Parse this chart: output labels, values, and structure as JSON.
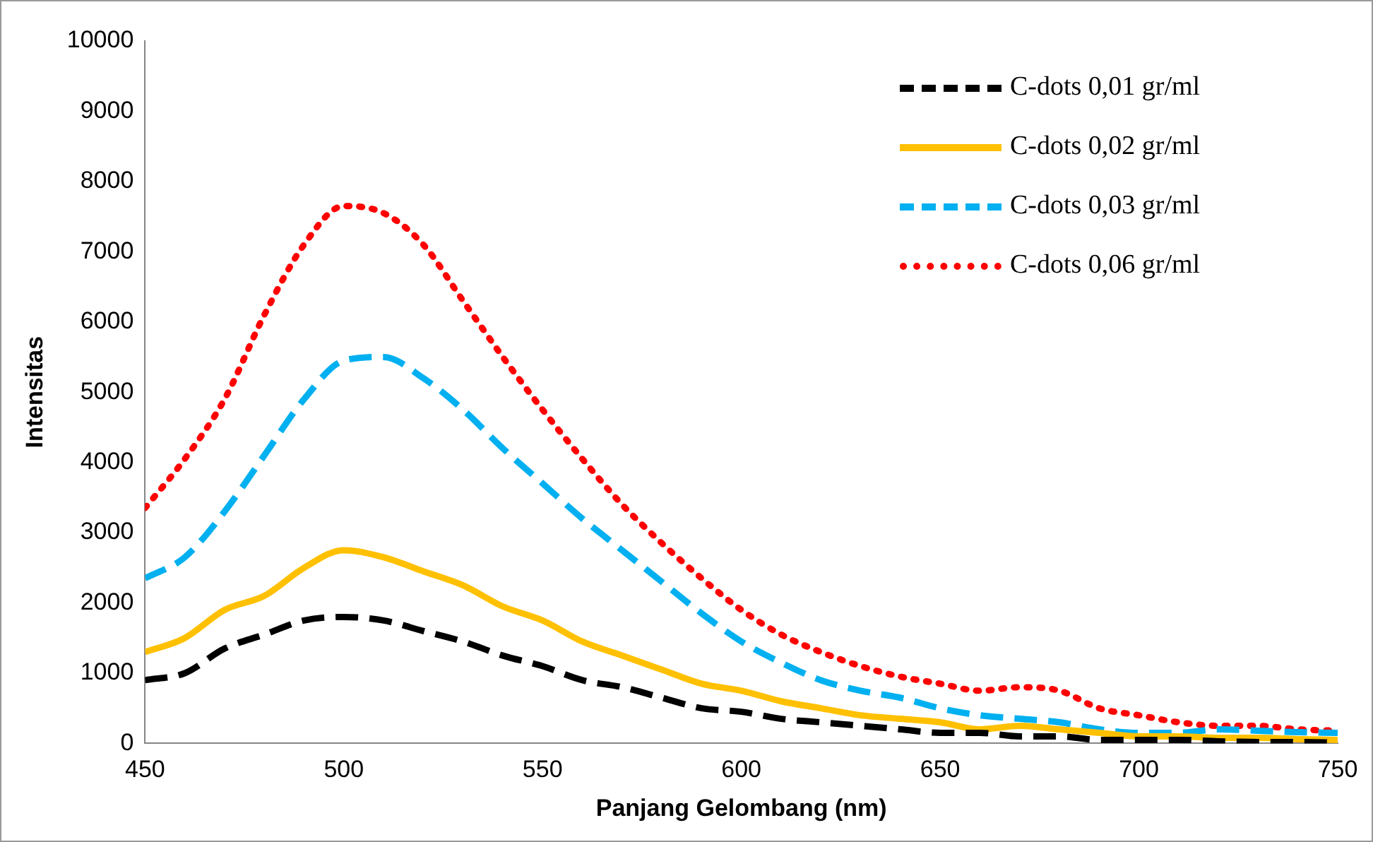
{
  "chart_data": {
    "type": "line",
    "xlabel": "Panjang Gelombang (nm)",
    "ylabel": "Intensitas",
    "x": [
      450,
      460,
      470,
      480,
      490,
      500,
      510,
      520,
      530,
      540,
      550,
      560,
      570,
      580,
      590,
      600,
      610,
      620,
      630,
      640,
      650,
      660,
      670,
      680,
      690,
      700,
      710,
      720,
      730,
      740,
      750
    ],
    "xlim": [
      450,
      750
    ],
    "xticks": [
      450,
      500,
      550,
      600,
      650,
      700,
      750
    ],
    "ylim": [
      0,
      10000
    ],
    "yticks": [
      0,
      1000,
      2000,
      3000,
      4000,
      5000,
      6000,
      7000,
      8000,
      9000,
      10000
    ],
    "grid": false,
    "legend": "top right",
    "marker": "none",
    "series": [
      {
        "name": "C-dots 0,01 gr/ml",
        "color": "#000000",
        "line_style": "dashed",
        "values": [
          900,
          1000,
          1350,
          1550,
          1750,
          1800,
          1750,
          1600,
          1450,
          1250,
          1100,
          900,
          800,
          650,
          500,
          450,
          350,
          300,
          250,
          200,
          150,
          150,
          100,
          100,
          50,
          50,
          50,
          30,
          20,
          20,
          10
        ]
      },
      {
        "name": "C-dots 0,02 gr/ml",
        "color": "#ffc000",
        "line_style": "solid",
        "values": [
          1300,
          1500,
          1900,
          2100,
          2500,
          2750,
          2650,
          2450,
          2250,
          1950,
          1750,
          1450,
          1250,
          1050,
          850,
          750,
          600,
          500,
          400,
          350,
          300,
          200,
          250,
          200,
          150,
          100,
          100,
          80,
          80,
          60,
          50
        ]
      },
      {
        "name": "C-dots 0,03 gr/ml",
        "color": "#00b0f0",
        "line_style": "dashed",
        "values": [
          2350,
          2650,
          3300,
          4100,
          4900,
          5450,
          5500,
          5200,
          4750,
          4200,
          3700,
          3200,
          2750,
          2300,
          1850,
          1450,
          1150,
          900,
          750,
          650,
          500,
          400,
          350,
          300,
          200,
          150,
          150,
          200,
          180,
          160,
          150
        ]
      },
      {
        "name": "C-dots 0,06 gr/ml",
        "color": "#ff0000",
        "line_style": "dotted",
        "values": [
          3350,
          4050,
          4900,
          6100,
          7100,
          7650,
          7550,
          7100,
          6300,
          5500,
          4750,
          4050,
          3400,
          2850,
          2350,
          1900,
          1550,
          1300,
          1100,
          950,
          850,
          750,
          800,
          750,
          500,
          400,
          300,
          250,
          250,
          200,
          180
        ]
      }
    ]
  }
}
